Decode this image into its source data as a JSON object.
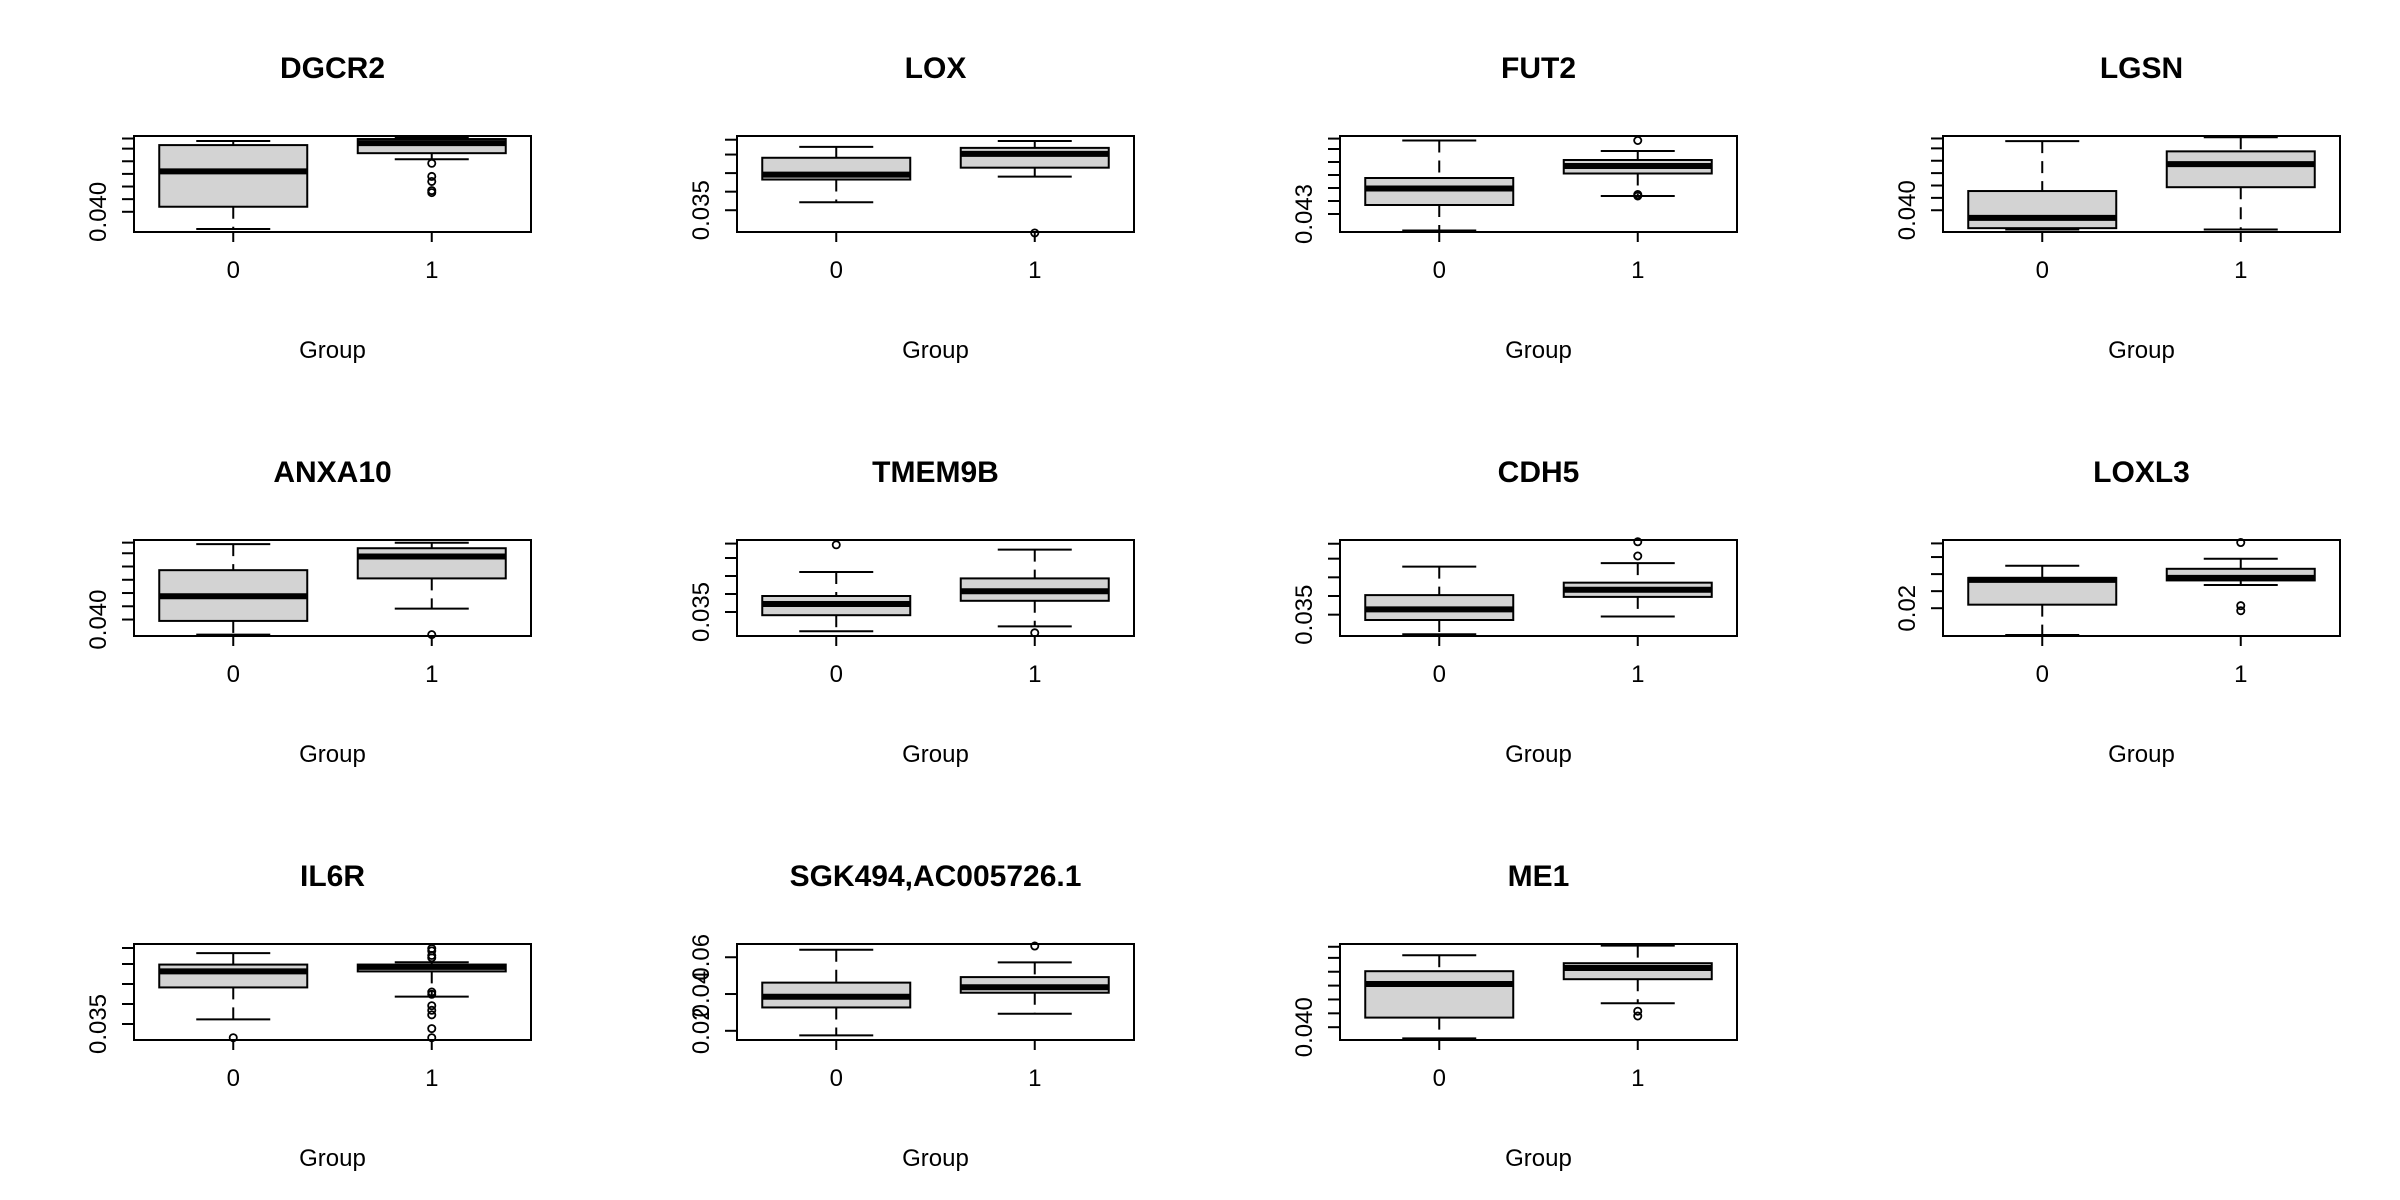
{
  "chart_data": [
    {
      "type": "boxplot",
      "title": "DGCR2",
      "xlabel": "Group",
      "ylabel": "",
      "categories": [
        "0",
        "1"
      ],
      "yticks": [
        0.04
      ],
      "ytick_labels": [
        "0.040"
      ],
      "ylim": [
        0.038,
        0.0475
      ],
      "minor_ticks": 6,
      "boxes": [
        {
          "whisker_low": 0.0383,
          "q1": 0.0405,
          "median": 0.044,
          "q3": 0.0466,
          "whisker_high": 0.047,
          "outliers": []
        },
        {
          "whisker_low": 0.0452,
          "q1": 0.0458,
          "median": 0.0468,
          "q3": 0.0472,
          "whisker_high": 0.0473,
          "outliers": [
            0.0448,
            0.0435,
            0.043,
            0.0421,
            0.0419
          ]
        }
      ]
    },
    {
      "type": "boxplot",
      "title": "LOX",
      "xlabel": "Group",
      "ylabel": "",
      "categories": [
        "0",
        "1"
      ],
      "yticks": [
        0.035
      ],
      "ytick_labels": [
        "0.035"
      ],
      "ylim": [
        0.0328,
        0.0425
      ],
      "minor_ticks": 4,
      "boxes": [
        {
          "whisker_low": 0.0358,
          "q1": 0.0381,
          "median": 0.0386,
          "q3": 0.0403,
          "whisker_high": 0.0414,
          "outliers": []
        },
        {
          "whisker_low": 0.0384,
          "q1": 0.0393,
          "median": 0.0407,
          "q3": 0.0413,
          "whisker_high": 0.042,
          "outliers": [
            0.0327
          ]
        }
      ]
    },
    {
      "type": "boxplot",
      "title": "FUT2",
      "xlabel": "Group",
      "ylabel": "",
      "categories": [
        "0",
        "1"
      ],
      "yticks": [
        0.043
      ],
      "ytick_labels": [
        "0.043"
      ],
      "ylim": [
        0.0418,
        0.0482
      ],
      "minor_ticks": 6,
      "boxes": [
        {
          "whisker_low": 0.0419,
          "q1": 0.0436,
          "median": 0.0447,
          "q3": 0.0454,
          "whisker_high": 0.0479,
          "outliers": []
        },
        {
          "whisker_low": 0.0442,
          "q1": 0.0457,
          "median": 0.0462,
          "q3": 0.0466,
          "whisker_high": 0.0472,
          "outliers": [
            0.0479,
            0.0443,
            0.0442
          ]
        }
      ]
    },
    {
      "type": "boxplot",
      "title": "LGSN",
      "xlabel": "Group",
      "ylabel": "",
      "categories": [
        "0",
        "1"
      ],
      "yticks": [
        0.04
      ],
      "ytick_labels": [
        "0.040"
      ],
      "ylim": [
        0.0383,
        0.0458
      ],
      "minor_ticks": 6,
      "boxes": [
        {
          "whisker_low": 0.0385,
          "q1": 0.0386,
          "median": 0.0394,
          "q3": 0.0415,
          "whisker_high": 0.0454,
          "outliers": []
        },
        {
          "whisker_low": 0.0385,
          "q1": 0.0418,
          "median": 0.0436,
          "q3": 0.0446,
          "whisker_high": 0.0457,
          "outliers": []
        }
      ]
    },
    {
      "type": "boxplot",
      "title": "ANXA10",
      "xlabel": "Group",
      "ylabel": "",
      "categories": [
        "0",
        "1"
      ],
      "yticks": [
        0.04
      ],
      "ytick_labels": [
        "0.040"
      ],
      "ylim": [
        0.0388,
        0.0458
      ],
      "minor_ticks": 6,
      "boxes": [
        {
          "whisker_low": 0.0389,
          "q1": 0.0399,
          "median": 0.0417,
          "q3": 0.0436,
          "whisker_high": 0.0455,
          "outliers": []
        },
        {
          "whisker_low": 0.0408,
          "q1": 0.043,
          "median": 0.0446,
          "q3": 0.0452,
          "whisker_high": 0.0456,
          "outliers": [
            0.0389
          ]
        }
      ]
    },
    {
      "type": "boxplot",
      "title": "TMEM9B",
      "xlabel": "Group",
      "ylabel": "",
      "categories": [
        "0",
        "1"
      ],
      "yticks": [
        0.035
      ],
      "ytick_labels": [
        "0.035"
      ],
      "ylim": [
        0.0335,
        0.0395
      ],
      "minor_ticks": 4,
      "boxes": [
        {
          "whisker_low": 0.0338,
          "q1": 0.0348,
          "median": 0.0355,
          "q3": 0.036,
          "whisker_high": 0.0375,
          "outliers": [
            0.0392
          ]
        },
        {
          "whisker_low": 0.0341,
          "q1": 0.0357,
          "median": 0.0363,
          "q3": 0.0371,
          "whisker_high": 0.0389,
          "outliers": [
            0.0337
          ]
        }
      ]
    },
    {
      "type": "boxplot",
      "title": "CDH5",
      "xlabel": "Group",
      "ylabel": "",
      "categories": [
        "0",
        "1"
      ],
      "yticks": [
        0.035
      ],
      "ytick_labels": [
        "0.035"
      ],
      "ylim": [
        0.0338,
        0.0392
      ],
      "minor_ticks": 4,
      "boxes": [
        {
          "whisker_low": 0.0339,
          "q1": 0.0347,
          "median": 0.0353,
          "q3": 0.0361,
          "whisker_high": 0.0377,
          "outliers": []
        },
        {
          "whisker_low": 0.0349,
          "q1": 0.036,
          "median": 0.0364,
          "q3": 0.0368,
          "whisker_high": 0.0379,
          "outliers": [
            0.0383,
            0.0391
          ]
        }
      ]
    },
    {
      "type": "boxplot",
      "title": "LOXL3",
      "xlabel": "Group",
      "ylabel": "",
      "categories": [
        "0",
        "1"
      ],
      "yticks": [
        0.02
      ],
      "ytick_labels": [
        "0.02"
      ],
      "ylim": [
        0.0145,
        0.0335
      ],
      "minor_ticks": 4,
      "boxes": [
        {
          "whisker_low": 0.0147,
          "q1": 0.0207,
          "median": 0.0256,
          "q3": 0.026,
          "whisker_high": 0.0284,
          "outliers": []
        },
        {
          "whisker_low": 0.0246,
          "q1": 0.0255,
          "median": 0.026,
          "q3": 0.0278,
          "whisker_high": 0.0298,
          "outliers": [
            0.0205,
            0.0195,
            0.033
          ]
        }
      ]
    },
    {
      "type": "boxplot",
      "title": "IL6R",
      "xlabel": "Group",
      "ylabel": "",
      "categories": [
        "0",
        "1"
      ],
      "yticks": [
        0.035
      ],
      "ytick_labels": [
        "0.035"
      ],
      "ylim": [
        0.0343,
        0.0385
      ],
      "minor_ticks": 4,
      "boxes": [
        {
          "whisker_low": 0.0352,
          "q1": 0.0366,
          "median": 0.0373,
          "q3": 0.0376,
          "whisker_high": 0.0381,
          "outliers": [
            0.0344
          ]
        },
        {
          "whisker_low": 0.0362,
          "q1": 0.0373,
          "median": 0.0375,
          "q3": 0.0376,
          "whisker_high": 0.0377,
          "outliers": [
            0.0383,
            0.0382,
            0.038,
            0.0379,
            0.0364,
            0.0363,
            0.0358,
            0.0356,
            0.0354,
            0.0348,
            0.0344
          ]
        }
      ]
    },
    {
      "type": "boxplot",
      "title": "SGK494,AC005726.1",
      "xlabel": "Group",
      "ylabel": "",
      "categories": [
        "0",
        "1"
      ],
      "yticks": [
        0.02,
        0.04,
        0.06
      ],
      "ytick_labels": [
        "0.02",
        "0.04",
        "0.06"
      ],
      "ylim": [
        0.015,
        0.0672
      ],
      "minor_ticks": 0,
      "boxes": [
        {
          "whisker_low": 0.0175,
          "q1": 0.0327,
          "median": 0.0385,
          "q3": 0.0462,
          "whisker_high": 0.0641,
          "outliers": []
        },
        {
          "whisker_low": 0.0293,
          "q1": 0.0407,
          "median": 0.0437,
          "q3": 0.0492,
          "whisker_high": 0.0572,
          "outliers": [
            0.0661
          ]
        }
      ]
    },
    {
      "type": "boxplot",
      "title": "ME1",
      "xlabel": "Group",
      "ylabel": "",
      "categories": [
        "0",
        "1"
      ],
      "yticks": [
        0.04
      ],
      "ytick_labels": [
        "0.040"
      ],
      "ylim": [
        0.0392,
        0.0452
      ],
      "minor_ticks": 6,
      "boxes": [
        {
          "whisker_low": 0.0393,
          "q1": 0.0406,
          "median": 0.0427,
          "q3": 0.0435,
          "whisker_high": 0.0445,
          "outliers": []
        },
        {
          "whisker_low": 0.0415,
          "q1": 0.043,
          "median": 0.0437,
          "q3": 0.044,
          "whisker_high": 0.0451,
          "outliers": [
            0.0407,
            0.041
          ]
        }
      ]
    }
  ]
}
